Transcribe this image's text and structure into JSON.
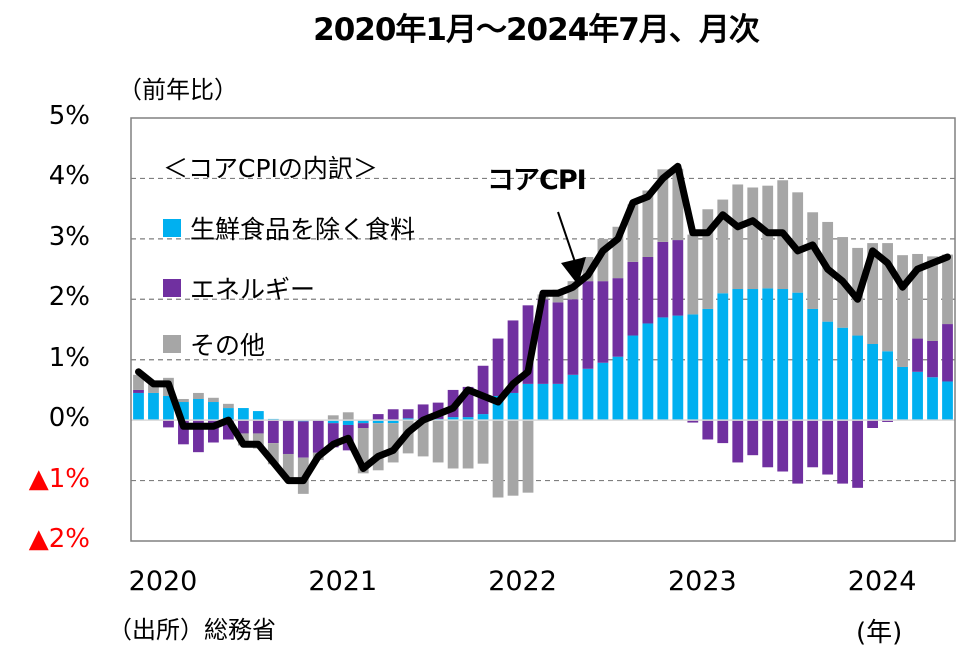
{
  "title": "2020年1月～2024年7月、月次",
  "unit_label": "（前年比）",
  "source_label": "（出所）総務省",
  "x_unit_label": "(年)",
  "callout_label": "コアCPI",
  "legend": {
    "title": "＜コアCPIの内訳＞",
    "items": [
      {
        "label": "生鮮食品を除く食料",
        "color": "#00b0f0"
      },
      {
        "label": "エネルギー",
        "color": "#7030a0"
      },
      {
        "label": "その他",
        "color": "#a6a6a6"
      }
    ]
  },
  "colors": {
    "line": "#000000",
    "grid": "#7f7f7f",
    "negative_tick": "#ff0000"
  },
  "chart_data": {
    "type": "bar",
    "subtype": "stacked bar + line",
    "title": "2020年1月～2024年7月、月次",
    "ylabel": "（前年比）",
    "xlabel": "(年)",
    "ylim": [
      -2,
      5
    ],
    "yticks": [
      5,
      4,
      3,
      2,
      1,
      0,
      -1,
      -2
    ],
    "ytick_labels": [
      "5%",
      "4%",
      "3%",
      "2%",
      "1%",
      "0%",
      "▲1%",
      "▲2%"
    ],
    "xtick_labels": [
      "2020",
      "2021",
      "2022",
      "2023",
      "2024"
    ],
    "xtick_month_index": [
      0,
      12,
      24,
      36,
      48
    ],
    "grid": true,
    "legend_position": "top-left",
    "categories": [
      "2020-01",
      "2020-02",
      "2020-03",
      "2020-04",
      "2020-05",
      "2020-06",
      "2020-07",
      "2020-08",
      "2020-09",
      "2020-10",
      "2020-11",
      "2020-12",
      "2021-01",
      "2021-02",
      "2021-03",
      "2021-04",
      "2021-05",
      "2021-06",
      "2021-07",
      "2021-08",
      "2021-09",
      "2021-10",
      "2021-11",
      "2021-12",
      "2022-01",
      "2022-02",
      "2022-03",
      "2022-04",
      "2022-05",
      "2022-06",
      "2022-07",
      "2022-08",
      "2022-09",
      "2022-10",
      "2022-11",
      "2022-12",
      "2023-01",
      "2023-02",
      "2023-03",
      "2023-04",
      "2023-05",
      "2023-06",
      "2023-07",
      "2023-08",
      "2023-09",
      "2023-10",
      "2023-11",
      "2023-12",
      "2024-01",
      "2024-02",
      "2024-03",
      "2024-04",
      "2024-05",
      "2024-06",
      "2024-07"
    ],
    "series": [
      {
        "name": "生鮮食品を除く食料",
        "type": "bar",
        "color": "#00b0f0",
        "values": [
          0.45,
          0.45,
          0.4,
          0.3,
          0.35,
          0.3,
          0.2,
          0.2,
          0.15,
          0.02,
          -0.01,
          -0.02,
          -0.01,
          -0.05,
          -0.08,
          -0.05,
          -0.05,
          -0.05,
          0.03,
          0.02,
          0.02,
          0.05,
          0.05,
          0.1,
          0.4,
          0.45,
          0.6,
          0.6,
          0.6,
          0.75,
          0.85,
          0.95,
          1.05,
          1.4,
          1.6,
          1.7,
          1.73,
          1.75,
          1.84,
          2.1,
          2.17,
          2.17,
          2.18,
          2.17,
          2.11,
          1.84,
          1.63,
          1.53,
          1.4,
          1.26,
          1.14,
          0.88,
          0.8,
          0.71,
          0.64
        ]
      },
      {
        "name": "エネルギー",
        "type": "bar",
        "color": "#7030a0",
        "values": [
          0.05,
          0.0,
          -0.12,
          -0.4,
          -0.53,
          -0.37,
          -0.32,
          -0.22,
          -0.22,
          -0.38,
          -0.55,
          -0.6,
          -0.53,
          -0.4,
          -0.42,
          -0.08,
          0.1,
          0.18,
          0.15,
          0.24,
          0.27,
          0.45,
          0.5,
          0.8,
          0.95,
          1.2,
          1.3,
          1.4,
          1.35,
          1.25,
          1.45,
          1.35,
          1.3,
          1.22,
          1.1,
          1.25,
          1.25,
          -0.04,
          -0.32,
          -0.38,
          -0.7,
          -0.58,
          -0.78,
          -0.85,
          -1.05,
          -0.78,
          -0.9,
          -1.05,
          -1.12,
          -0.13,
          -0.03,
          0.0,
          0.55,
          0.6,
          0.95
        ]
      },
      {
        "name": "その他",
        "type": "bar",
        "color": "#a6a6a6",
        "values": [
          0.25,
          0.2,
          0.3,
          0.05,
          0.1,
          0.07,
          0.07,
          -0.2,
          -0.25,
          -0.35,
          -0.42,
          -0.6,
          -0.12,
          0.08,
          0.13,
          -0.75,
          -0.78,
          -0.65,
          -0.55,
          -0.6,
          -0.7,
          -0.8,
          -0.8,
          -0.72,
          -1.28,
          -1.25,
          -1.2,
          0.08,
          0.21,
          0.3,
          0.4,
          0.7,
          0.85,
          0.95,
          1.1,
          1.2,
          1.18,
          1.32,
          1.65,
          1.55,
          1.73,
          1.68,
          1.7,
          1.8,
          1.66,
          1.6,
          1.65,
          1.5,
          1.45,
          1.67,
          1.79,
          1.85,
          1.4,
          1.4,
          1.15
        ]
      },
      {
        "name": "コアCPI",
        "type": "line",
        "color": "#000000",
        "values": [
          0.8,
          0.6,
          0.6,
          -0.1,
          -0.1,
          -0.1,
          0.0,
          -0.4,
          -0.4,
          -0.7,
          -1.0,
          -1.0,
          -0.6,
          -0.4,
          -0.3,
          -0.8,
          -0.6,
          -0.5,
          -0.2,
          0.0,
          0.1,
          0.2,
          0.5,
          0.4,
          0.3,
          0.6,
          0.8,
          2.1,
          2.1,
          2.2,
          2.4,
          2.8,
          3.0,
          3.6,
          3.7,
          4.0,
          4.2,
          3.1,
          3.1,
          3.4,
          3.2,
          3.3,
          3.1,
          3.1,
          2.8,
          2.9,
          2.5,
          2.3,
          2.0,
          2.8,
          2.6,
          2.2,
          2.5,
          2.6,
          2.7
        ]
      }
    ]
  }
}
